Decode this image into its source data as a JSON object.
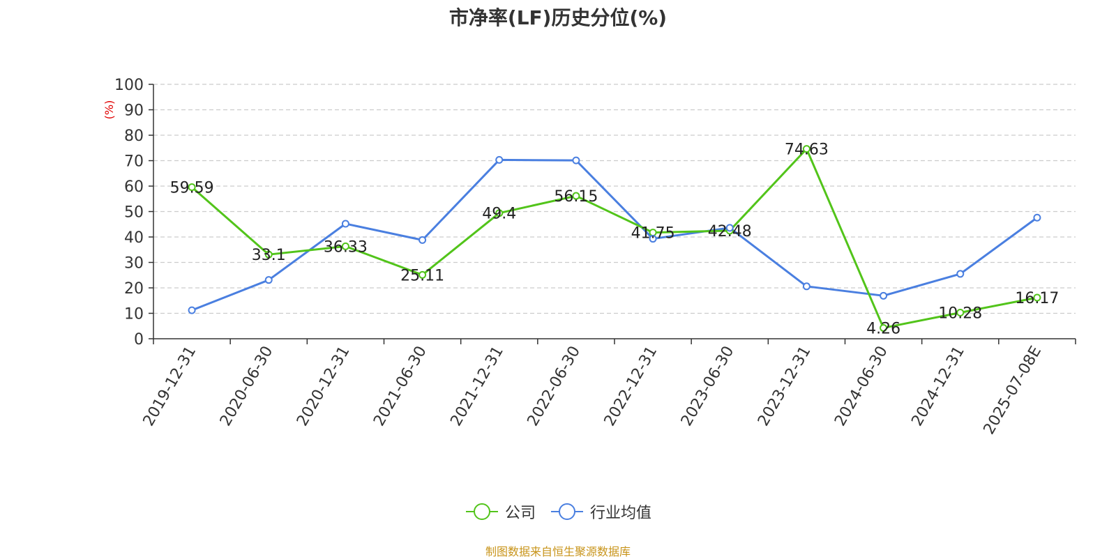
{
  "title": "市净率(LF)历史分位(%)",
  "source": "制图数据来自恒生聚源数据库",
  "chart_data": {
    "type": "line",
    "title": "市净率(LF)历史分位(%)",
    "ylabel": "(%)",
    "ylim": [
      0,
      100
    ],
    "yticks": [
      0,
      10,
      20,
      30,
      40,
      50,
      60,
      70,
      80,
      90,
      100
    ],
    "grid": true,
    "legend_position": "bottom-center",
    "categories": [
      "2019-12-31",
      "2020-06-30",
      "2020-12-31",
      "2021-06-30",
      "2021-12-31",
      "2022-06-30",
      "2022-12-31",
      "2023-06-30",
      "2023-12-31",
      "2024-06-30",
      "2024-12-31",
      "2025-07-08E"
    ],
    "series": [
      {
        "name": "公司",
        "color": "#52c41a",
        "values": [
          59.59,
          33.1,
          36.33,
          25.11,
          49.4,
          56.15,
          41.75,
          42.48,
          74.63,
          4.26,
          10.28,
          16.17
        ],
        "labels": [
          "59.59",
          "33.1",
          "36.33",
          "25.11",
          "49.4",
          "56.15",
          "41.75",
          "42.48",
          "74.63",
          "4.26",
          "10.28",
          "16.17"
        ]
      },
      {
        "name": "行业均值",
        "color": "#4a7fe0",
        "values": [
          11.2,
          23.1,
          45.2,
          38.8,
          70.3,
          70.1,
          39.3,
          43.6,
          20.6,
          16.9,
          25.5,
          47.6
        ]
      }
    ]
  }
}
